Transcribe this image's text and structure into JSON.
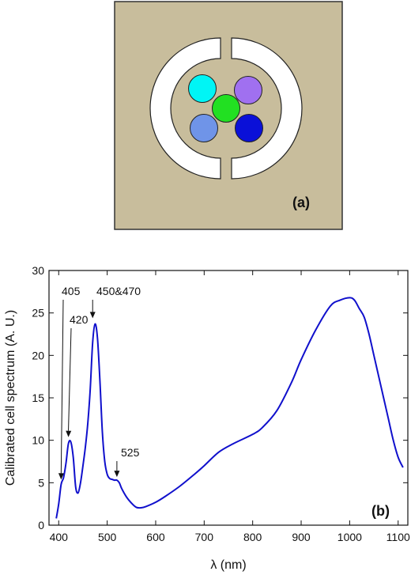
{
  "panel_a": {
    "label": "(a)",
    "background_color": "#c8bd9c",
    "led_colors": {
      "top_left": "#00f5f5",
      "top_right": "#a070f0",
      "center": "#22e022",
      "bottom_left": "#6f94e8",
      "bottom_right": "#0a10d8"
    }
  },
  "chart_data": {
    "type": "line",
    "panel_label": "(b)",
    "xlabel": "λ (nm)",
    "ylabel": "Calibrated cell spectrum (A. U.)",
    "xlim": [
      380,
      1120
    ],
    "ylim": [
      0,
      30
    ],
    "xticks": [
      400,
      500,
      600,
      700,
      800,
      900,
      1000,
      1100
    ],
    "yticks": [
      0,
      5,
      10,
      15,
      20,
      25,
      30
    ],
    "line_color": "#1010cc",
    "grid": false,
    "legend": "none",
    "series": [
      {
        "x": [
          395,
          400,
          405,
          410,
          415,
          420,
          425,
          430,
          435,
          440,
          445,
          450,
          455,
          460,
          465,
          470,
          475,
          480,
          485,
          490,
          495,
          500,
          505,
          510,
          515,
          520,
          525,
          530,
          540,
          550,
          560,
          570,
          580,
          600,
          620,
          650,
          680,
          700,
          730,
          760,
          800,
          820,
          850,
          880,
          900,
          930,
          960,
          980,
          1000,
          1010,
          1020,
          1030,
          1040,
          1050,
          1060,
          1070,
          1080,
          1090,
          1100,
          1110
        ],
        "y": [
          0.8,
          2.5,
          4.8,
          5.6,
          7.3,
          9.6,
          9.8,
          8.0,
          4.5,
          3.8,
          5.0,
          7.0,
          9.2,
          12.0,
          16.0,
          21.5,
          23.7,
          22.0,
          17.0,
          11.0,
          7.5,
          6.0,
          5.5,
          5.4,
          5.3,
          5.3,
          5.0,
          4.3,
          3.3,
          2.6,
          2.1,
          2.05,
          2.2,
          2.7,
          3.4,
          4.6,
          6.0,
          7.0,
          8.6,
          9.6,
          10.7,
          11.5,
          13.5,
          16.8,
          19.5,
          23.0,
          25.8,
          26.5,
          26.8,
          26.5,
          25.5,
          24.5,
          22.5,
          20.0,
          17.5,
          15.0,
          12.5,
          10.0,
          8.0,
          6.8
        ]
      }
    ],
    "annotations": [
      {
        "text": "405",
        "x": 405,
        "y": 5.0
      },
      {
        "text": "420",
        "x": 420,
        "y": 10.0
      },
      {
        "text": "450&470",
        "x": 470,
        "y": 24.0
      },
      {
        "text": "525",
        "x": 520,
        "y": 5.3
      }
    ]
  }
}
